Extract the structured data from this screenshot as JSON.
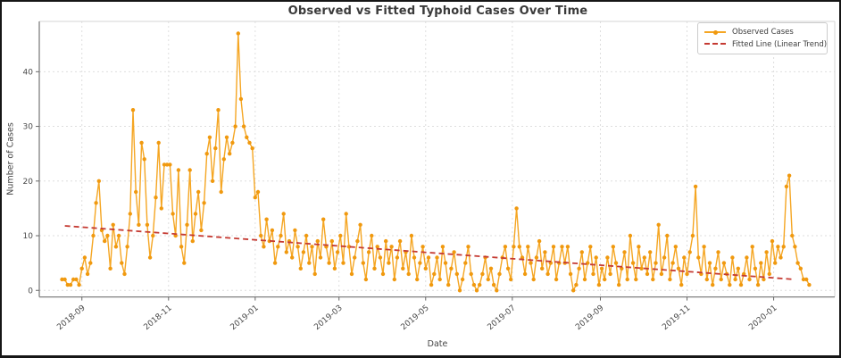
{
  "figure": {
    "title": "Observed vs Fitted Typhoid Cases Over Time",
    "xlabel": "Date",
    "ylabel": "Number of Cases"
  },
  "legend": {
    "observed_label": "Observed Cases",
    "fitted_label": "Fitted Line (Linear Trend)"
  },
  "colors": {
    "observed_line": "#F5A623",
    "observed_marker": "#F0990F",
    "fitted_line": "#C53A32",
    "grid": "#DEDEDE",
    "spine_dark": "#808080",
    "spine_light": "#D6D6D6",
    "tick_mark": "#666666",
    "tick_text": "#4A4A4A",
    "title_text": "#3A3A3A",
    "border": "#161616"
  },
  "chart_data": {
    "type": "line",
    "title": "Observed vs Fitted Typhoid Cases Over Time",
    "xlabel": "Date",
    "ylabel": "Number of Cases",
    "grid": true,
    "legend_position": "upper right",
    "x_tick_labels": [
      "2018-09",
      "2018-11",
      "2019-01",
      "2019-03",
      "2019-05",
      "2019-07",
      "2019-09",
      "2019-11",
      "2020-01"
    ],
    "x_tick_days": [
      14,
      75,
      136,
      195,
      256,
      317,
      379,
      440,
      501
    ],
    "y_ticks": [
      0,
      10,
      20,
      30,
      40
    ],
    "xlim_days": [
      -16,
      544
    ],
    "ylim": [
      -1.2,
      49.2
    ],
    "series": [
      {
        "name": "Observed Cases",
        "type": "line+markers",
        "start_date": "2018-08-18",
        "step_days": 2,
        "values": [
          2,
          2,
          1,
          1,
          2,
          2,
          1,
          4,
          6,
          3,
          5,
          10,
          16,
          20,
          11,
          9,
          10,
          4,
          12,
          8,
          10,
          5,
          3,
          8,
          14,
          33,
          18,
          12,
          27,
          24,
          12,
          6,
          10,
          17,
          27,
          15,
          23,
          23,
          23,
          14,
          10,
          22,
          8,
          5,
          12,
          22,
          9,
          14,
          18,
          11,
          16,
          25,
          28,
          20,
          26,
          33,
          18,
          24,
          28,
          25,
          27,
          30,
          47,
          35,
          30,
          28,
          27,
          26,
          17,
          18,
          10,
          8,
          13,
          9,
          11,
          5,
          8,
          10,
          14,
          7,
          9,
          6,
          11,
          8,
          4,
          7,
          10,
          5,
          8,
          3,
          9,
          6,
          13,
          8,
          5,
          9,
          4,
          7,
          10,
          5,
          14,
          8,
          3,
          6,
          9,
          12,
          5,
          2,
          7,
          10,
          4,
          8,
          6,
          3,
          9,
          5,
          8,
          2,
          6,
          9,
          4,
          7,
          3,
          10,
          6,
          2,
          5,
          8,
          4,
          6,
          1,
          3,
          6,
          2,
          8,
          5,
          1,
          4,
          7,
          3,
          0,
          2,
          5,
          8,
          3,
          1,
          0,
          1,
          3,
          6,
          2,
          4,
          1,
          0,
          3,
          6,
          8,
          4,
          2,
          8,
          15,
          8,
          6,
          3,
          8,
          5,
          2,
          6,
          9,
          4,
          7,
          3,
          5,
          8,
          2,
          5,
          8,
          5,
          8,
          3,
          0,
          1,
          4,
          7,
          2,
          5,
          8,
          3,
          6,
          1,
          4,
          2,
          6,
          3,
          8,
          5,
          1,
          4,
          7,
          2,
          10,
          5,
          2,
          8,
          4,
          6,
          3,
          7,
          2,
          5,
          12,
          3,
          6,
          10,
          2,
          5,
          8,
          4,
          1,
          6,
          3,
          7,
          10,
          19,
          6,
          3,
          8,
          2,
          5,
          1,
          4,
          7,
          2,
          5,
          3,
          1,
          6,
          2,
          4,
          1,
          3,
          6,
          2,
          8,
          4,
          1,
          5,
          2,
          7,
          3,
          9,
          5,
          8,
          6,
          8,
          19,
          21,
          10,
          8,
          5,
          4,
          2,
          2,
          1
        ]
      },
      {
        "name": "Fitted Line (Linear Trend)",
        "type": "dashed-trend",
        "day_start": 2,
        "value_start": 11.8,
        "day_end": 516,
        "value_end": 2.0
      }
    ]
  }
}
